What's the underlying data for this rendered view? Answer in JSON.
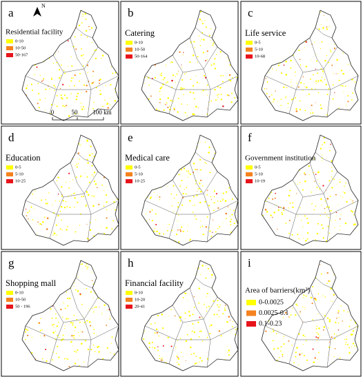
{
  "panels": [
    {
      "letter": "a",
      "title": "Residential facility",
      "legend": [
        {
          "label": "0-10",
          "color": "#ffff00"
        },
        {
          "label": "10-50",
          "color": "#f5821f"
        },
        {
          "label": "50-167",
          "color": "#e8141b"
        }
      ]
    },
    {
      "letter": "b",
      "title": "Catering",
      "legend": [
        {
          "label": "0-10",
          "color": "#ffff00"
        },
        {
          "label": "10-50",
          "color": "#f5821f"
        },
        {
          "label": "50-164",
          "color": "#e8141b"
        }
      ]
    },
    {
      "letter": "c",
      "title": "Life service",
      "legend": [
        {
          "label": "0-5",
          "color": "#ffff00"
        },
        {
          "label": "5-10",
          "color": "#f5821f"
        },
        {
          "label": "10-68",
          "color": "#e8141b"
        }
      ]
    },
    {
      "letter": "d",
      "title": "Education",
      "legend": [
        {
          "label": "0-5",
          "color": "#ffff00"
        },
        {
          "label": "5-10",
          "color": "#f5821f"
        },
        {
          "label": "10-25",
          "color": "#e8141b"
        }
      ]
    },
    {
      "letter": "e",
      "title": "Medical care",
      "legend": [
        {
          "label": "0-5",
          "color": "#ffff00"
        },
        {
          "label": "5-10",
          "color": "#f5821f"
        },
        {
          "label": "10-25",
          "color": "#e8141b"
        }
      ]
    },
    {
      "letter": "f",
      "title": "Government institution",
      "legend": [
        {
          "label": "0-5",
          "color": "#ffff00"
        },
        {
          "label": "5-10",
          "color": "#f5821f"
        },
        {
          "label": "10-19",
          "color": "#e8141b"
        }
      ]
    },
    {
      "letter": "g",
      "title": "Shopping mall",
      "legend": [
        {
          "label": "0-10",
          "color": "#ffff00"
        },
        {
          "label": "10-50",
          "color": "#f5821f"
        },
        {
          "label": "50 - 196",
          "color": "#e8141b"
        }
      ]
    },
    {
      "letter": "h",
      "title": "Financial facility",
      "legend": [
        {
          "label": "0-10",
          "color": "#ffff00"
        },
        {
          "label": "10-20",
          "color": "#f5821f"
        },
        {
          "label": "20-41",
          "color": "#e8141b"
        }
      ]
    },
    {
      "letter": "i",
      "title": "Area of barriers(km²)",
      "legend": [
        {
          "label": "0-0.0025",
          "color": "#ffff00"
        },
        {
          "label": "0.0025-0.1",
          "color": "#f5821f"
        },
        {
          "label": "0.1-0.23",
          "color": "#e8141b"
        }
      ]
    }
  ],
  "north": "N",
  "scale_bar": [
    "0",
    "50",
    "100 km"
  ]
}
